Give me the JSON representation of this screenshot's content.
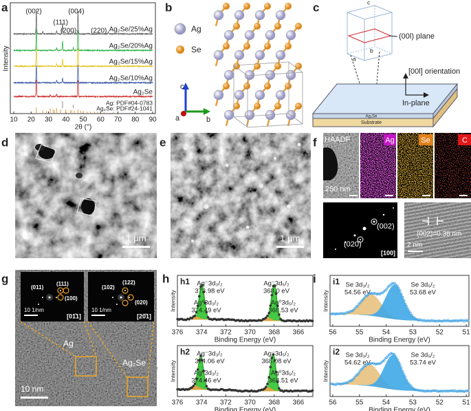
{
  "panels": {
    "a": {
      "label": "a",
      "ylabel": "Intensity",
      "xlabel": "2θ (°)",
      "xlim": [
        10,
        90
      ],
      "xticks": [
        10,
        20,
        30,
        40,
        50,
        60,
        70,
        80,
        90
      ],
      "peak_labels": [
        {
          "text": "(002)",
          "x": 21.5,
          "color": "#c8741e"
        },
        {
          "text": "(004)",
          "x": 46,
          "color": "#c8741e"
        },
        {
          "text": "(111)",
          "x": 37,
          "color": "#3a8fd6"
        },
        {
          "text": "(200)",
          "x": 41.5,
          "color": "#3a8fd6"
        },
        {
          "text": "(220)",
          "x": 59,
          "color": "#3a8fd6"
        }
      ],
      "series": [
        {
          "name": "Ag₂Se/25%Ag",
          "color": "#666666",
          "peaks": [
            [
              23,
              1
            ],
            [
              26.7,
              0.12
            ],
            [
              34.7,
              0.15
            ],
            [
              38.1,
              0.45
            ],
            [
              44.3,
              0.15
            ],
            [
              47,
              0.95
            ],
            [
              64.4,
              0.08
            ]
          ]
        },
        {
          "name": "Ag₂Se/20%Ag",
          "color": "#2db34a",
          "peaks": [
            [
              23,
              0.9
            ],
            [
              34.7,
              0.12
            ],
            [
              38.1,
              0.4
            ],
            [
              44.3,
              0.12
            ],
            [
              47,
              0.85
            ]
          ]
        },
        {
          "name": "Ag₂Se/15%Ag",
          "color": "#e2c21a",
          "peaks": [
            [
              23,
              0.8
            ],
            [
              34.7,
              0.1
            ],
            [
              38.1,
              0.3
            ],
            [
              47,
              0.8
            ]
          ]
        },
        {
          "name": "Ag₂Se/10%Ag",
          "color": "#3a5ca8",
          "peaks": [
            [
              23,
              0.75
            ],
            [
              34.7,
              0.1
            ],
            [
              38.1,
              0.2
            ],
            [
              47,
              0.75
            ]
          ]
        },
        {
          "name": "Ag₂Se",
          "color": "#d02a2a",
          "peaks": [
            [
              23,
              0.7
            ],
            [
              31,
              0.08
            ],
            [
              34.7,
              0.1
            ],
            [
              47,
              0.7
            ]
          ]
        }
      ],
      "references": [
        {
          "name": "Ag: PDF#04-0783",
          "color": "#888888",
          "lines": [
            38.1,
            44.3,
            64.4,
            77.4
          ],
          "heights": [
            1,
            0.5,
            0.3,
            0.3
          ]
        },
        {
          "name": "Ag₂Se: PDF#24-1041",
          "color": "#e0a040",
          "lines": [
            23,
            26.7,
            28.9,
            31,
            32.7,
            33.5,
            34.7,
            36.9,
            40,
            42.6,
            43.4,
            44.9,
            47,
            48.6,
            50,
            52.4,
            54.2,
            56.5,
            58.3,
            62,
            67.2
          ],
          "heights": [
            0.8,
            0.4,
            0.3,
            0.6,
            0.5,
            0.4,
            0.7,
            0.5,
            0.5,
            0.4,
            0.4,
            0.3,
            0.5,
            0.3,
            0.3,
            0.2,
            0.2,
            0.2,
            0.2,
            0.15,
            0.15
          ]
        }
      ]
    },
    "b": {
      "label": "b",
      "legend": [
        "Ag",
        "Se"
      ],
      "axes": [
        "c",
        "b",
        "a"
      ]
    },
    "c": {
      "label": "c",
      "axes": [
        "c",
        "b",
        "a"
      ],
      "plane": "(00l) plane",
      "orientation": "[00l] orientation",
      "inplane": "In-plane",
      "film": "Ag₂Se",
      "substrate": "Substrate"
    },
    "d": {
      "label": "d",
      "scale": "1 μm"
    },
    "e": {
      "label": "e",
      "scale": "1 μm"
    },
    "f": {
      "label": "f",
      "maps": [
        "HAADF",
        "Ag",
        "Se",
        "C"
      ],
      "scale_map": "250 nm",
      "saed": [
        "(002)",
        "(020)",
        "[100]"
      ],
      "scale_hr": "2 nm",
      "d_spacing": "(002)=0.38 nm"
    },
    "g": {
      "label": "g",
      "inset1": [
        "(011)",
        "(111)",
        "(100)",
        "10 1/nm",
        "[01̄1]"
      ],
      "inset2": [
        "(102)",
        "(122)",
        "(020)",
        "10 1/nm",
        "[20̄1]"
      ],
      "phases": [
        "Ag",
        "Ag₂Se"
      ],
      "scale": "10 nm"
    },
    "h": {
      "label": "h",
      "plots": [
        {
          "label": "h1",
          "xlim": [
            376,
            364.8
          ],
          "xticks": [
            376,
            374,
            372,
            370,
            368,
            366
          ],
          "xlabel": "Binding Energy (eV)",
          "ylabel": "Intensity",
          "peaks": [
            {
              "name": "Ag⁻3d₃/₂",
              "value": 373.98,
              "value_label": "373.98 eV",
              "color": "#2fc42f",
              "intensity": 0.95,
              "width": 0.22
            },
            {
              "name": "Ag⁰3d₃/₂",
              "value": 374.49,
              "value_label": "374.49 eV",
              "color": "#f0a040",
              "intensity": 0.08,
              "width": 0.3
            },
            {
              "name": "Ag⁻3d₅/₂",
              "value": 368.0,
              "value_label": "368.0 eV",
              "color": "#2fc42f",
              "intensity": 1,
              "width": 0.22
            },
            {
              "name": "Ag⁰3d₅/₂",
              "value": 368.53,
              "value_label": "368.53 eV",
              "color": "#f0a040",
              "intensity": 0.08,
              "width": 0.3
            }
          ]
        },
        {
          "label": "h2",
          "xlim": [
            376,
            364.8
          ],
          "xticks": [
            376,
            374,
            372,
            370,
            368,
            366
          ],
          "xlabel": "Binding Energy (eV)",
          "ylabel": "Intensity",
          "peaks": [
            {
              "name": "Ag⁻3d₃/₂",
              "value": 374.06,
              "value_label": "374.06 eV",
              "color": "#2fc42f",
              "intensity": 0.9,
              "width": 0.22
            },
            {
              "name": "Ag⁰3d₃/₂",
              "value": 374.46,
              "value_label": "374.46 eV",
              "color": "#f0a040",
              "intensity": 0.1,
              "width": 0.3
            },
            {
              "name": "Ag⁻3d₅/₂",
              "value": 368.08,
              "value_label": "368.08 eV",
              "color": "#2fc42f",
              "intensity": 1,
              "width": 0.22
            },
            {
              "name": "Ag⁰3d₅/₂",
              "value": 368.51,
              "value_label": "368.51 eV",
              "color": "#f0a040",
              "intensity": 0.1,
              "width": 0.3
            }
          ]
        }
      ]
    },
    "i": {
      "label": "i",
      "plots": [
        {
          "label": "i1",
          "xlim": [
            56.1,
            50.9
          ],
          "xticks": [
            56,
            55,
            54,
            53,
            52,
            51
          ],
          "xlabel": "Binding Energy (eV)",
          "ylabel": "Intensity",
          "peaks": [
            {
              "name": "Se 3d₃/₂",
              "value": 54.56,
              "value_label": "54.56 eV",
              "color": "#e8c27e",
              "intensity": 0.6,
              "width": 0.38
            },
            {
              "name": "Se 3d₅/₂",
              "value": 53.68,
              "value_label": "53.68 eV",
              "color": "#41a9e8",
              "intensity": 0.95,
              "width": 0.33
            }
          ]
        },
        {
          "label": "i2",
          "xlim": [
            56.1,
            50.9
          ],
          "xticks": [
            56,
            55,
            54,
            53,
            52,
            51
          ],
          "xlabel": "Binding Energy (eV)",
          "ylabel": "Intensity",
          "peaks": [
            {
              "name": "Se 3d₃/₂",
              "value": 54.62,
              "value_label": "54.62 eV",
              "color": "#e8c27e",
              "intensity": 0.6,
              "width": 0.38
            },
            {
              "name": "Se 3d₅/₂",
              "value": 53.74,
              "value_label": "53.74 eV",
              "color": "#41a9e8",
              "intensity": 0.95,
              "width": 0.33
            }
          ]
        }
      ]
    }
  }
}
